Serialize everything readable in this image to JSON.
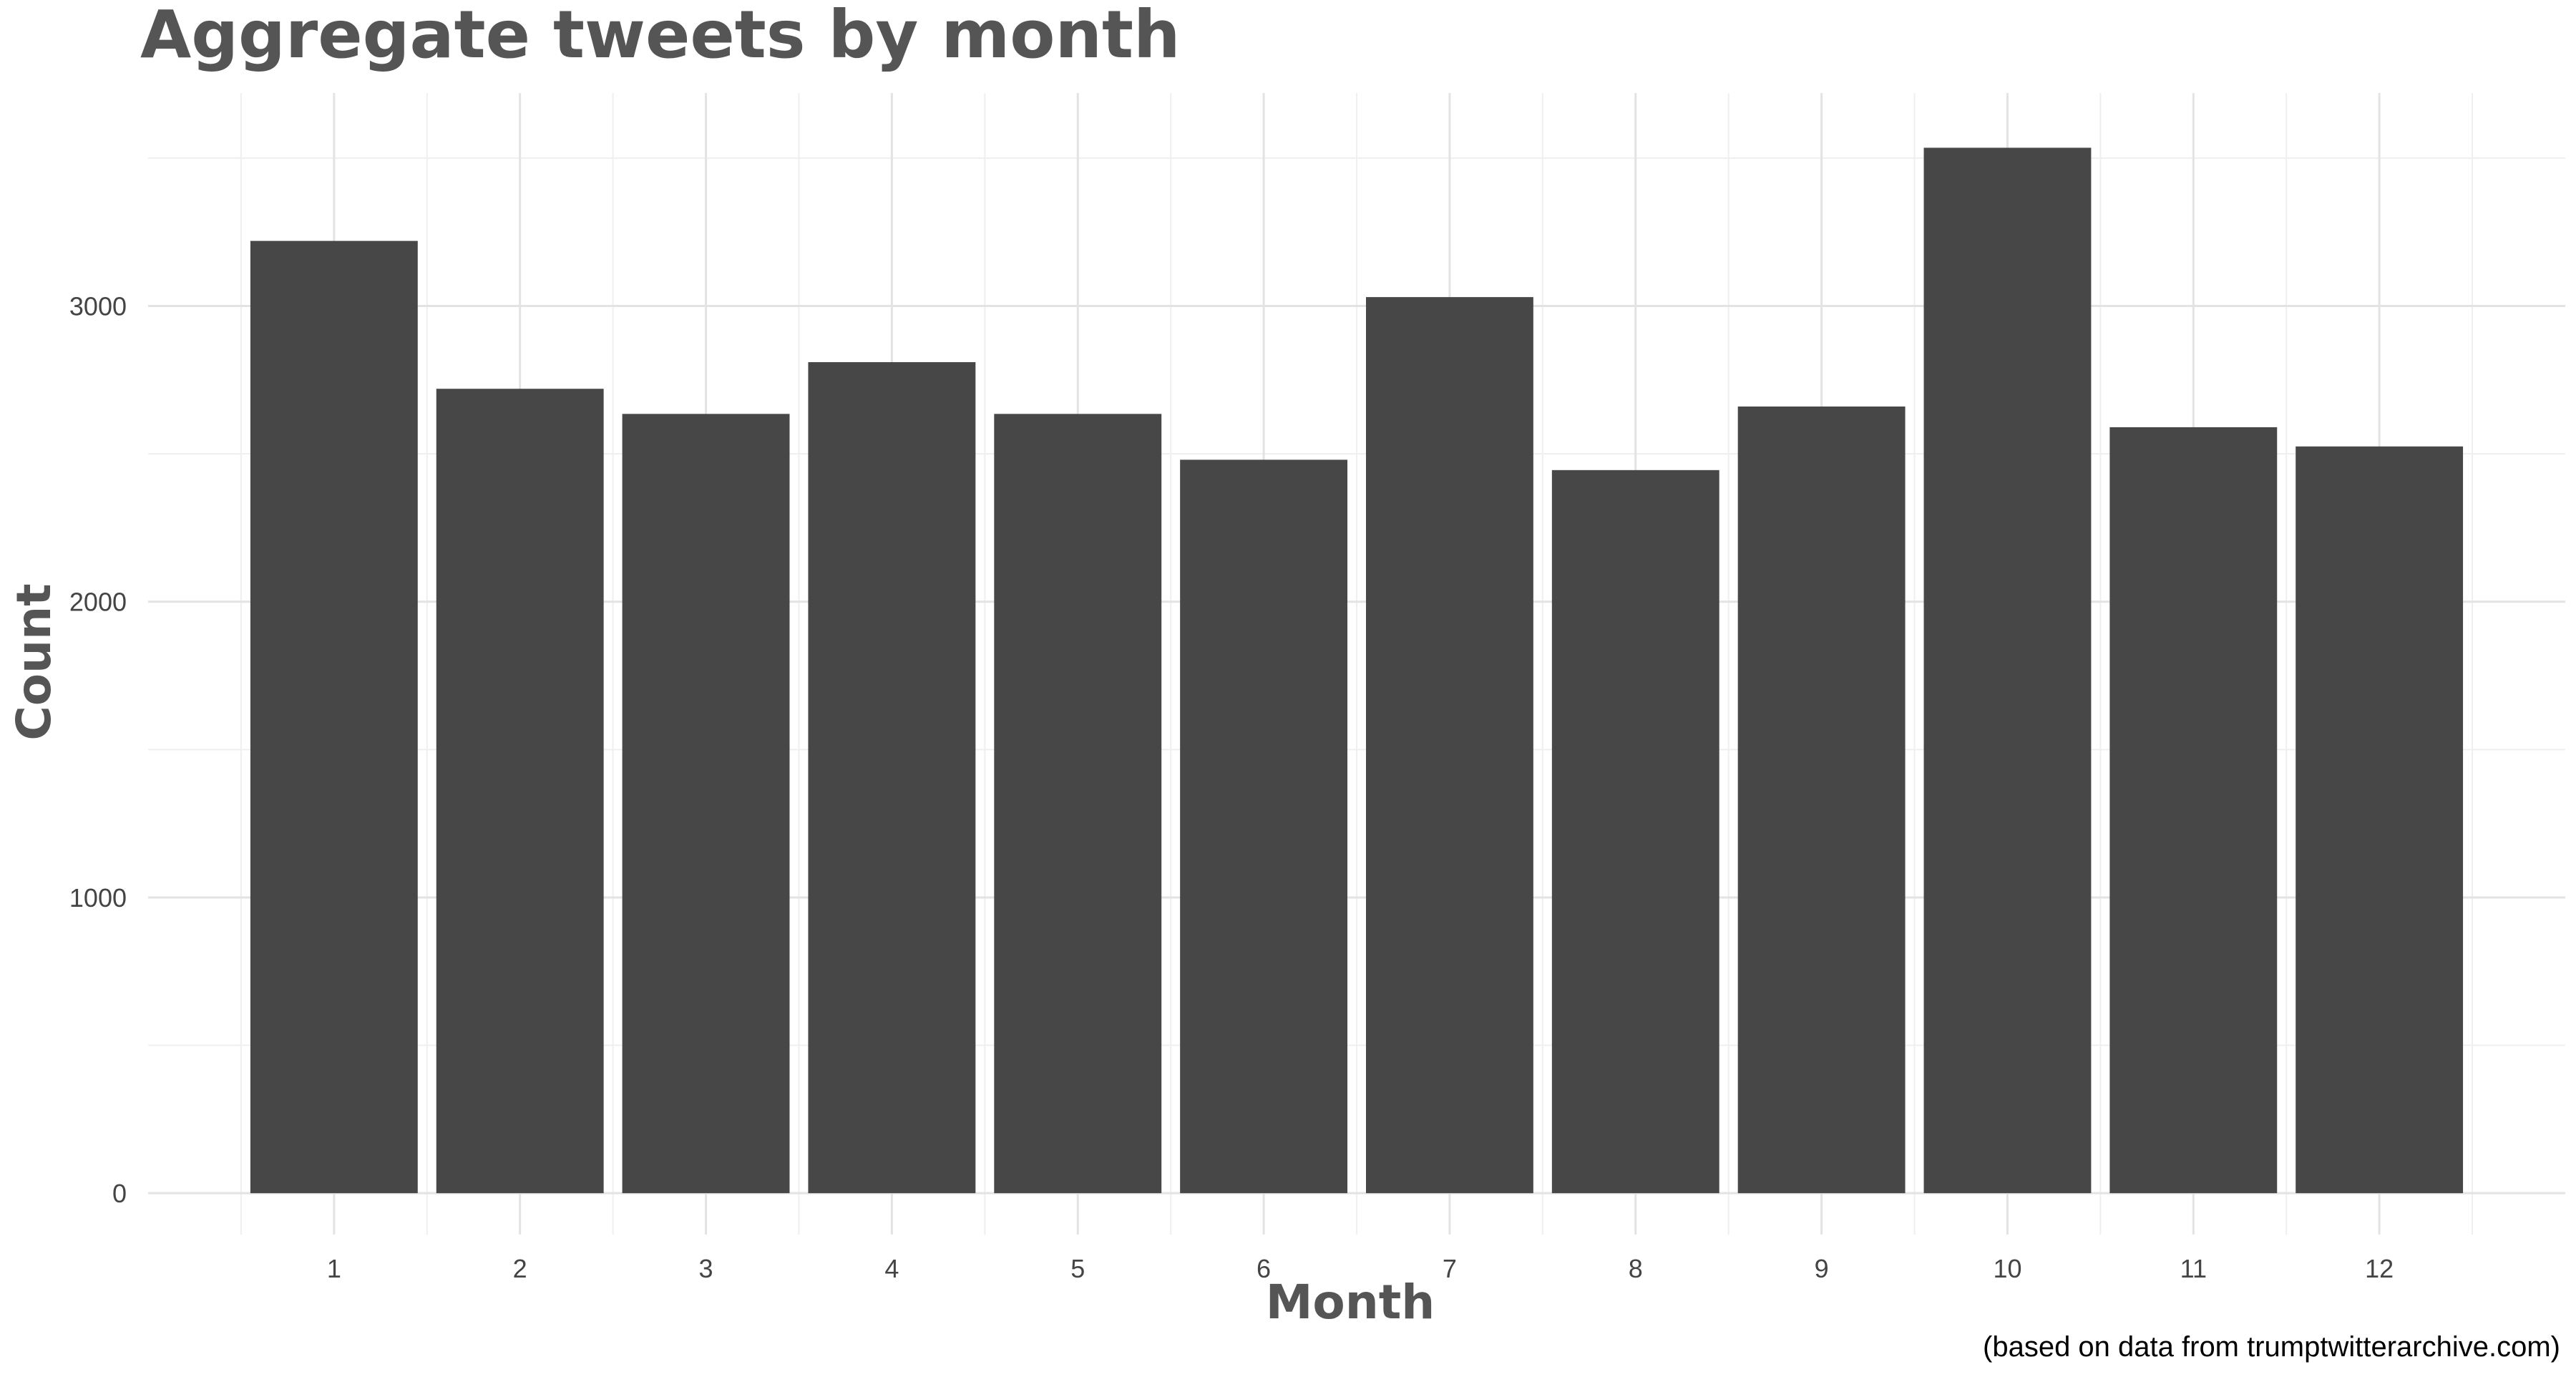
{
  "chart_data": {
    "type": "bar",
    "title": "Aggregate tweets by month",
    "xlabel": "Month",
    "ylabel": "Count",
    "caption": "(based on data from trumptwitterarchive.com)",
    "categories": [
      "1",
      "2",
      "3",
      "4",
      "5",
      "6",
      "7",
      "8",
      "9",
      "10",
      "11",
      "12"
    ],
    "values": [
      3220,
      2720,
      2635,
      2810,
      2635,
      2480,
      3030,
      2445,
      2660,
      3535,
      2590,
      2525
    ],
    "ylim": [
      -140,
      3720
    ],
    "yticks": [
      0,
      1000,
      2000,
      3000
    ],
    "ytick_labels": [
      "0",
      "1000",
      "2000",
      "3000"
    ],
    "grid": true,
    "legend": "none",
    "colors": {
      "bar": "#474747",
      "background": "#ffffff"
    }
  }
}
